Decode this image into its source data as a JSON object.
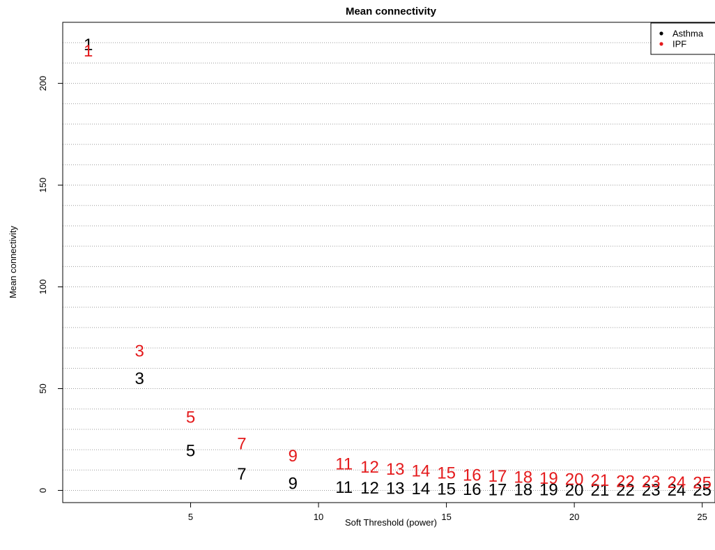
{
  "chart_data": {
    "type": "scatter",
    "title": "Mean connectivity",
    "xlabel": "Soft Threshold (power)",
    "ylabel": "Mean connectivity",
    "xlim": [
      0,
      25.5
    ],
    "ylim": [
      -6,
      230
    ],
    "xticks": [
      5,
      10,
      15,
      20,
      25
    ],
    "yticks": [
      0,
      50,
      100,
      150,
      200
    ],
    "grid": "horizontal dotted",
    "legend_position": "top-right",
    "point_marker": "power value as text label",
    "series": [
      {
        "name": "Asthma",
        "color": "#000000",
        "x": [
          1,
          3,
          5,
          7,
          9,
          11,
          12,
          13,
          14,
          15,
          16,
          17,
          18,
          19,
          20,
          21,
          22,
          23,
          24,
          25
        ],
        "y": [
          219,
          55,
          19.5,
          8,
          3.5,
          1.5,
          1.2,
          1.0,
          0.8,
          0.6,
          0.5,
          0.4,
          0.35,
          0.3,
          0.25,
          0.2,
          0.18,
          0.15,
          0.12,
          0.1
        ],
        "labels": [
          "1",
          "3",
          "5",
          "7",
          "9",
          "11",
          "12",
          "13",
          "14",
          "15",
          "16",
          "17",
          "18",
          "19",
          "20",
          "21",
          "22",
          "23",
          "24",
          "25"
        ]
      },
      {
        "name": "IPF",
        "color": "#e41a1c",
        "x": [
          1,
          3,
          5,
          7,
          9,
          11,
          12,
          13,
          14,
          15,
          16,
          17,
          18,
          19,
          20,
          21,
          22,
          23,
          24,
          25
        ],
        "y": [
          216,
          68.5,
          36,
          23,
          17,
          13,
          11.5,
          10.5,
          9.5,
          8.5,
          7.5,
          7,
          6.5,
          6,
          5.5,
          5,
          4.5,
          4.2,
          4,
          3.8
        ],
        "labels": [
          "1",
          "3",
          "5",
          "7",
          "9",
          "11",
          "12",
          "13",
          "14",
          "15",
          "16",
          "17",
          "18",
          "19",
          "20",
          "21",
          "22",
          "23",
          "24",
          "25"
        ]
      }
    ]
  }
}
